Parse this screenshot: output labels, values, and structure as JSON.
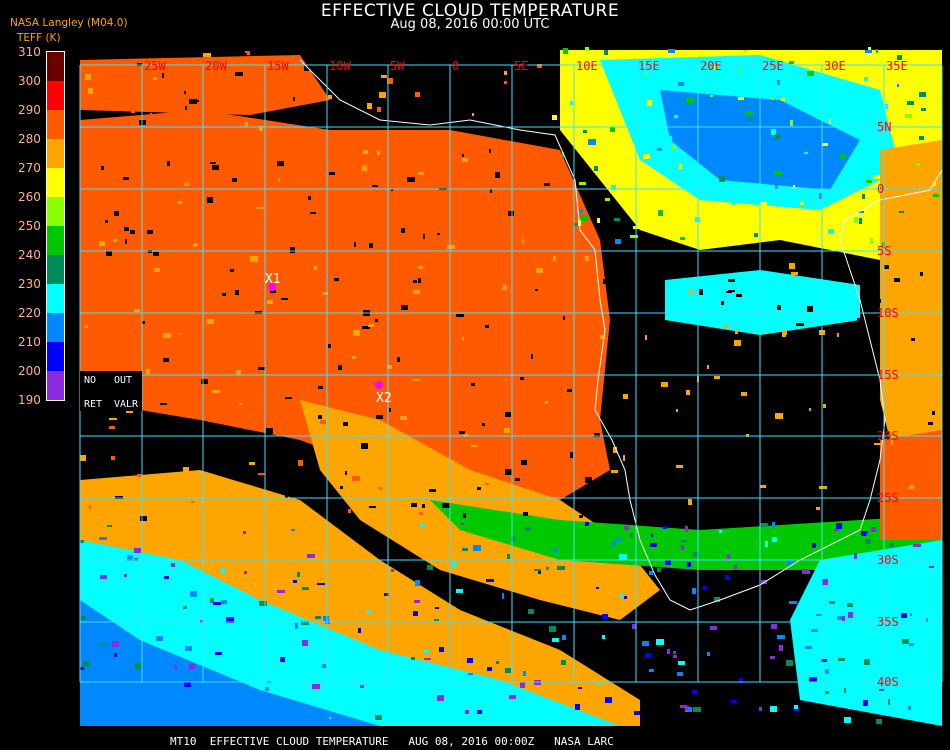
{
  "header": {
    "title": "EFFECTIVE CLOUD TEMPERATURE",
    "subtitle": "Aug 08, 2016 00:00 UTC",
    "source": "NASA Langley (M04.0)",
    "unit": "TEFF (K)"
  },
  "legend": {
    "ticks": [
      "310",
      "300",
      "290",
      "280",
      "270",
      "260",
      "250",
      "240",
      "230",
      "220",
      "210",
      "200",
      "190"
    ],
    "colors": [
      "#6b0000",
      "#ff0000",
      "#ff5a00",
      "#ffa500",
      "#ffff00",
      "#88ff00",
      "#00c800",
      "#008c5a",
      "#00ffff",
      "#0088ff",
      "#0000ff",
      "#8a2be2"
    ]
  },
  "map": {
    "no_ret_label": [
      "NO",
      "RET"
    ],
    "out_valr_label": [
      "OUT",
      "VALR"
    ],
    "lon_labels": [
      "25W",
      "20W",
      "15W",
      "10W",
      "5W",
      "0",
      "5E",
      "10E",
      "15E",
      "20E",
      "25E",
      "30E",
      "35E"
    ],
    "lat_labels": [
      "5N",
      "0",
      "5S",
      "10S",
      "15S",
      "20S",
      "25S",
      "30S",
      "35S",
      "40S"
    ],
    "grid_color": "#40e0ff",
    "label_color": "#ff0000",
    "markers": [
      {
        "label": "X1",
        "color": "#ff00ff"
      },
      {
        "label": "X2",
        "color": "#ff00ff"
      }
    ]
  },
  "footer": "MT10  EFFECTIVE CLOUD TEMPERATURE   AUG 08, 2016 00:00Z   NASA LARC"
}
